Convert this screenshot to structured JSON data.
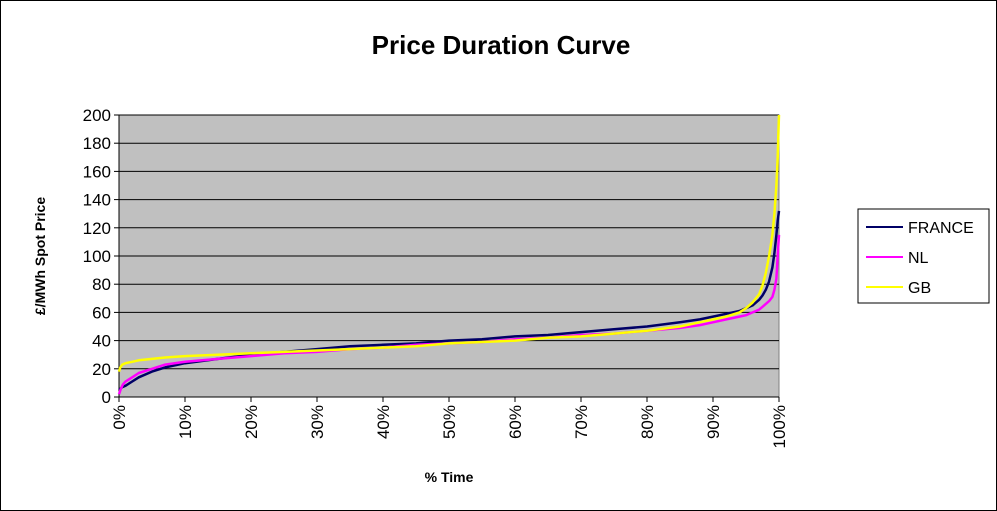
{
  "chart_data": {
    "type": "line",
    "title": "Price Duration Curve",
    "xlabel": "% Time",
    "ylabel": "£/MWh Spot Price",
    "x_ticks": [
      "0%",
      "10%",
      "20%",
      "30%",
      "40%",
      "50%",
      "60%",
      "70%",
      "80%",
      "90%",
      "100%"
    ],
    "y_ticks": [
      "0",
      "20",
      "40",
      "60",
      "80",
      "100",
      "120",
      "140",
      "160",
      "180",
      "200"
    ],
    "xlim": [
      0,
      100
    ],
    "ylim": [
      0,
      200
    ],
    "grid": "horizontal",
    "legend_position": "right",
    "plot_background": "#c0c0c0",
    "series": [
      {
        "name": "FRANCE",
        "color": "#000066",
        "x": [
          0,
          0.5,
          1,
          2,
          3,
          5,
          7,
          10,
          15,
          20,
          25,
          30,
          35,
          40,
          45,
          50,
          55,
          60,
          65,
          70,
          75,
          80,
          85,
          88,
          90,
          92,
          94,
          95,
          96,
          97,
          97.5,
          98,
          98.5,
          99,
          99.3,
          99.6,
          99.8,
          100
        ],
        "y": [
          5,
          7,
          8,
          11,
          14,
          18,
          21,
          24,
          27,
          30,
          32,
          34,
          36,
          37,
          38,
          40,
          41,
          43,
          44,
          46,
          48,
          50,
          53,
          55,
          57,
          59,
          61,
          63,
          65,
          69,
          72,
          76,
          82,
          92,
          102,
          115,
          125,
          132
        ]
      },
      {
        "name": "NL",
        "color": "#ff00ff",
        "x": [
          0,
          0.3,
          0.6,
          1,
          2,
          3,
          5,
          7,
          10,
          15,
          20,
          25,
          30,
          35,
          40,
          45,
          50,
          55,
          60,
          65,
          70,
          75,
          80,
          85,
          88,
          90,
          92,
          94,
          95,
          96,
          97,
          97.5,
          98,
          98.5,
          99,
          99.3,
          99.6,
          99.8,
          100
        ],
        "y": [
          2,
          6,
          9,
          11,
          14,
          17,
          20,
          23,
          25,
          27,
          29,
          31,
          32,
          34,
          35,
          37,
          38,
          39,
          41,
          42,
          44,
          45,
          47,
          49,
          51,
          53,
          55,
          57,
          58,
          60,
          62,
          64,
          66,
          68,
          71,
          76,
          84,
          100,
          115
        ]
      },
      {
        "name": "GB",
        "color": "#ffff00",
        "x": [
          0,
          0.2,
          0.5,
          1,
          2,
          3,
          5,
          7,
          10,
          15,
          20,
          25,
          30,
          35,
          40,
          45,
          50,
          55,
          60,
          65,
          70,
          75,
          80,
          85,
          88,
          90,
          92,
          94,
          95,
          96,
          97,
          97.5,
          98,
          98.5,
          99,
          99.3,
          99.6,
          99.8,
          99.9,
          100
        ],
        "y": [
          18,
          21,
          23,
          24,
          25,
          26,
          27,
          28,
          29,
          30,
          31,
          32,
          33,
          34,
          35,
          36,
          38,
          39,
          40,
          42,
          43,
          45,
          47,
          50,
          53,
          55,
          57,
          60,
          63,
          67,
          73,
          79,
          88,
          100,
          115,
          130,
          150,
          170,
          185,
          200
        ]
      }
    ]
  }
}
